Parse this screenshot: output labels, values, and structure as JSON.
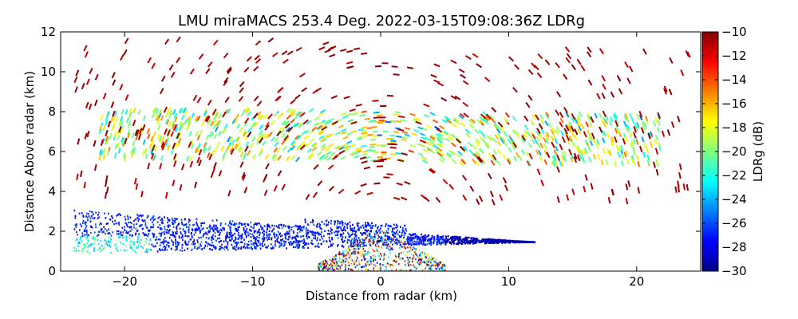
{
  "chart_data": {
    "type": "heatmap",
    "title": "LMU miraMACS 253.4 Deg. 2022-03-15T09:08:36Z  LDRg",
    "xlabel": "Distance from radar (km)",
    "ylabel": "Distance Above radar  (km)",
    "xlim": [
      -25,
      25
    ],
    "ylim": [
      0,
      12
    ],
    "x_ticks": [
      -20,
      -10,
      0,
      10,
      20
    ],
    "x_tick_labels": [
      "−20",
      "−10",
      "0",
      "10",
      "20"
    ],
    "y_ticks": [
      0,
      2,
      4,
      6,
      8,
      10,
      12
    ],
    "y_tick_labels": [
      "0",
      "2",
      "4",
      "6",
      "8",
      "10",
      "12"
    ],
    "colorbar": {
      "label": "LDRg (dB)",
      "range": [
        -30,
        -10
      ],
      "ticks": [
        -30,
        -28,
        -26,
        -24,
        -22,
        -20,
        -18,
        -16,
        -14,
        -12,
        -10
      ],
      "tick_labels": [
        "−30",
        "−28",
        "−26",
        "−24",
        "−22",
        "−20",
        "−18",
        "−16",
        "−14",
        "−12",
        "−10"
      ],
      "colormap": "jet"
    },
    "grid": false,
    "layers": [
      {
        "feature": "low dense cloud band",
        "x_range": [
          -24,
          12
        ],
        "height_range": [
          0.5,
          3.2
        ],
        "ldr_typical": -27
      },
      {
        "feature": "mid-level cloud layer",
        "x_range": [
          -22,
          22
        ],
        "height_range": [
          5.5,
          8.0
        ],
        "ldr_typical": -19
      },
      {
        "feature": "sparse high echoes",
        "x_range": [
          -24,
          24
        ],
        "height_range": [
          3.5,
          11.5
        ],
        "ldr_typical": -10
      }
    ]
  }
}
